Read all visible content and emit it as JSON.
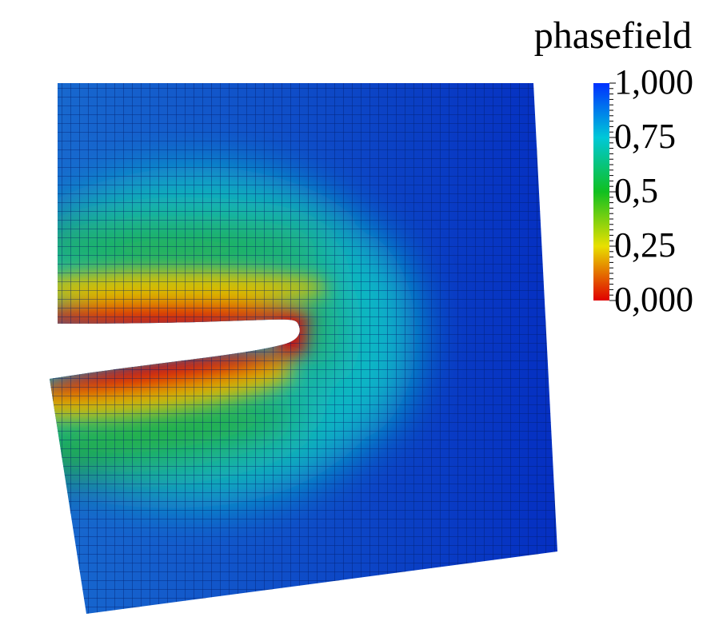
{
  "legend": {
    "title": "phasefield",
    "labels": [
      "1,000",
      "0,75",
      "0,5",
      "0,25",
      "0,000"
    ]
  }
}
